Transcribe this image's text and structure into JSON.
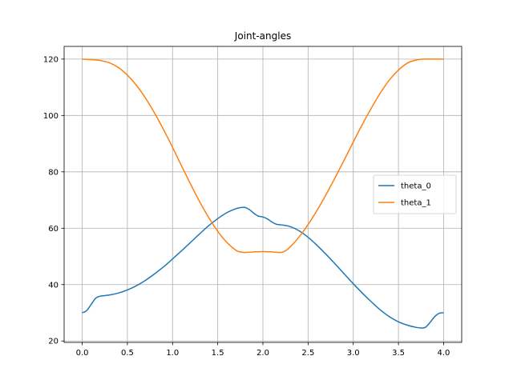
{
  "chart_data": {
    "type": "line",
    "title": "Joint-angles",
    "xlabel": "",
    "ylabel": "",
    "xlim": [
      -0.2,
      4.2
    ],
    "ylim": [
      19.5,
      124.5
    ],
    "xticks": [
      0.0,
      0.5,
      1.0,
      1.5,
      2.0,
      2.5,
      3.0,
      3.5,
      4.0
    ],
    "xtick_labels": [
      "0.0",
      "0.5",
      "1.0",
      "1.5",
      "2.0",
      "2.5",
      "3.0",
      "3.5",
      "4.0"
    ],
    "yticks": [
      20,
      40,
      60,
      80,
      100,
      120
    ],
    "ytick_labels": [
      "20",
      "40",
      "60",
      "80",
      "100",
      "120"
    ],
    "grid": true,
    "legend_position": "center-right",
    "series": [
      {
        "name": "theta_0",
        "color": "#1f77b4",
        "x": [
          0.0,
          0.05,
          0.1,
          0.15,
          0.2,
          0.3,
          0.4,
          0.5,
          0.6,
          0.7,
          0.8,
          0.9,
          1.0,
          1.1,
          1.2,
          1.3,
          1.4,
          1.5,
          1.6,
          1.7,
          1.75,
          1.8,
          1.85,
          1.9,
          1.95,
          2.0,
          2.05,
          2.1,
          2.15,
          2.2,
          2.3,
          2.4,
          2.5,
          2.6,
          2.7,
          2.8,
          2.9,
          3.0,
          3.1,
          3.2,
          3.3,
          3.4,
          3.5,
          3.6,
          3.7,
          3.75,
          3.8,
          3.85,
          3.9,
          3.95,
          4.0
        ],
        "y": [
          30.0,
          30.8,
          33.0,
          35.2,
          35.9,
          36.3,
          37.0,
          38.1,
          39.6,
          41.5,
          43.8,
          46.3,
          49.1,
          52.0,
          55.0,
          58.0,
          60.9,
          63.4,
          65.5,
          66.9,
          67.3,
          67.4,
          66.6,
          65.3,
          64.3,
          64.0,
          63.3,
          62.2,
          61.4,
          61.2,
          60.6,
          59.1,
          56.8,
          53.9,
          50.7,
          47.3,
          43.8,
          40.3,
          37.0,
          33.9,
          31.0,
          28.6,
          26.8,
          25.6,
          24.8,
          24.6,
          24.9,
          26.6,
          28.6,
          29.8,
          30.0
        ]
      },
      {
        "name": "theta_1",
        "color": "#ff7f0e",
        "x": [
          0.0,
          0.1,
          0.2,
          0.3,
          0.4,
          0.5,
          0.6,
          0.7,
          0.8,
          0.9,
          1.0,
          1.1,
          1.2,
          1.3,
          1.4,
          1.5,
          1.6,
          1.7,
          1.75,
          1.8,
          1.9,
          2.0,
          2.1,
          2.2,
          2.25,
          2.3,
          2.4,
          2.5,
          2.6,
          2.7,
          2.8,
          2.9,
          3.0,
          3.1,
          3.2,
          3.3,
          3.4,
          3.5,
          3.6,
          3.7,
          3.8,
          3.9,
          4.0
        ],
        "y": [
          120.0,
          119.8,
          119.5,
          118.7,
          117.0,
          114.3,
          110.7,
          106.2,
          100.9,
          95.0,
          88.7,
          82.1,
          75.6,
          69.4,
          63.8,
          58.9,
          55.0,
          52.2,
          51.6,
          51.4,
          51.6,
          51.7,
          51.6,
          51.4,
          52.0,
          53.3,
          56.9,
          61.3,
          66.4,
          72.0,
          78.0,
          84.2,
          90.6,
          96.8,
          102.6,
          108.0,
          112.6,
          116.1,
          118.6,
          119.7,
          120.0,
          120.0,
          120.0
        ]
      }
    ]
  }
}
